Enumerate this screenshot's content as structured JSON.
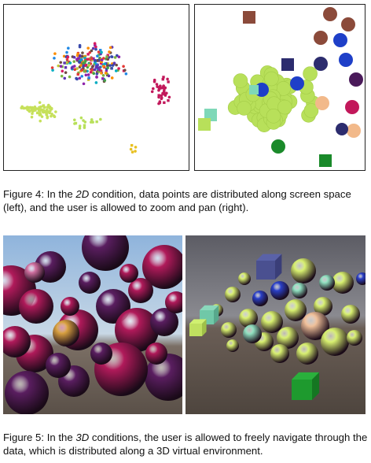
{
  "figure4": {
    "caption_prefix": "Figure 4: In the ",
    "caption_em": "2D",
    "caption_suffix": " condition, data points are distributed along screen space (left), and the user is allowed to zoom and pan (right).",
    "left_panel": {
      "view": "2D scatter overview"
    },
    "right_panel": {
      "view": "2D zoomed and panned view"
    }
  },
  "figure5": {
    "caption_prefix": "Figure 5: In the ",
    "caption_em": "3D",
    "caption_suffix": " conditions, the user is allowed to freely navigate through the data, which is distributed along a 3D virtual environment.",
    "left_panel": {
      "view": "3D spheres closeup"
    },
    "right_panel": {
      "view": "3D mixed shapes environment"
    }
  },
  "colors": {
    "lime": "#b8e05a",
    "magenta": "#c2185b",
    "purple": "#4a1a5a",
    "blue": "#1e3fc8",
    "navy": "#2c2c6e",
    "green": "#1a8a2a",
    "brown": "#8b4a3a",
    "peach": "#f2b98a",
    "teal": "#7fd8b8",
    "orange": "#e8a43a"
  }
}
